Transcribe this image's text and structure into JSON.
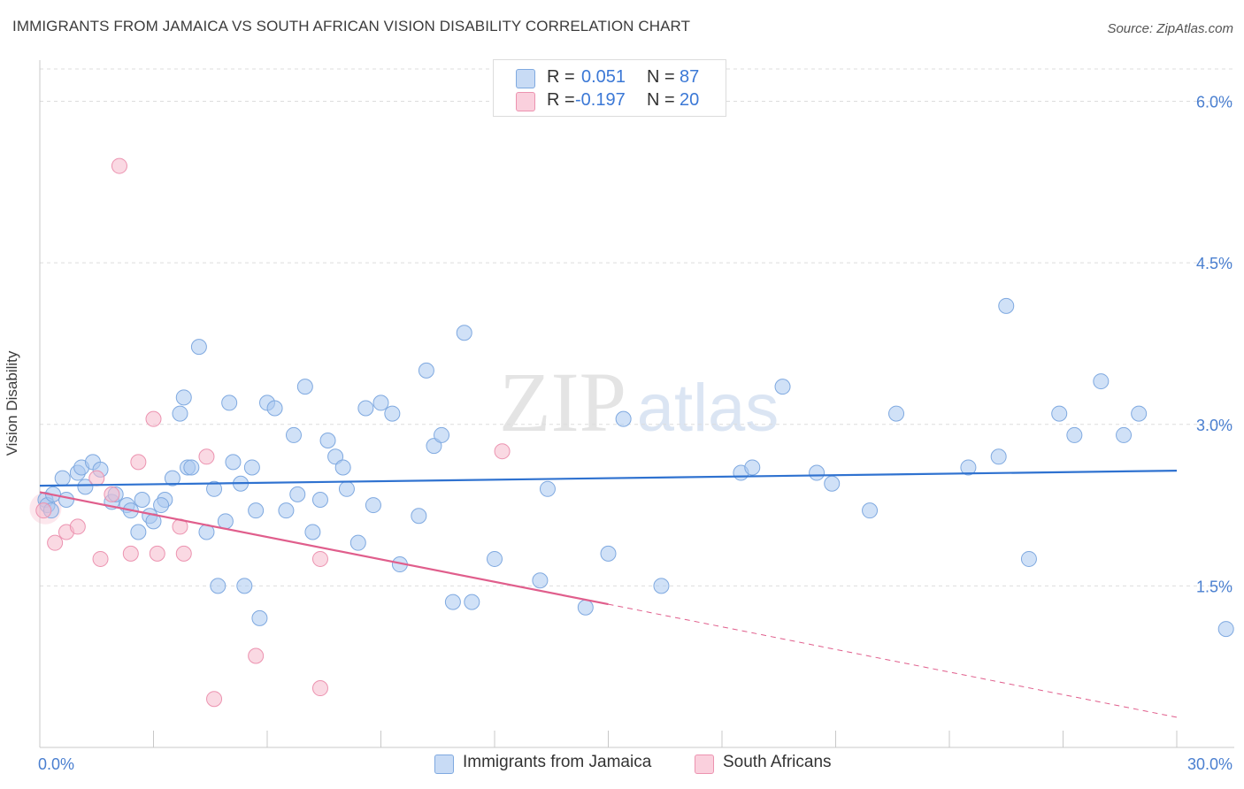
{
  "title": "IMMIGRANTS FROM JAMAICA VS SOUTH AFRICAN VISION DISABILITY CORRELATION CHART",
  "source": "Source: ZipAtlas.com",
  "watermark": {
    "zip": "ZIP",
    "atlas": "atlas"
  },
  "legend": {
    "rows": [
      {
        "r_label": "R =",
        "r_value": "0.051",
        "n_label": "N =",
        "n_value": "87",
        "color": "#a9c8f0"
      },
      {
        "r_label": "R =",
        "r_value": "-0.197",
        "n_label": "N =",
        "n_value": "20",
        "color": "#f6b9cc"
      }
    ]
  },
  "bottom_legend": {
    "series_1": "Immigrants from Jamaica",
    "series_2": "South Africans"
  },
  "colors": {
    "blue_fill": "#a9c8f0",
    "blue_stroke": "#7fa9e0",
    "blue_line": "#2f72d0",
    "pink_fill": "#f6b9cc",
    "pink_stroke": "#ec93b0",
    "pink_line": "#e05e8c",
    "axis_text": "#4a7fd0",
    "grid": "#dddddd"
  },
  "chart_data": {
    "type": "scatter",
    "title": "IMMIGRANTS FROM JAMAICA VS SOUTH AFRICAN VISION DISABILITY CORRELATION CHART",
    "xlabel": "",
    "ylabel": "Vision Disability",
    "xlim": [
      0,
      30
    ],
    "ylim": [
      0,
      6.3
    ],
    "x_tick_labels": [
      "0.0%",
      "30.0%"
    ],
    "y_ticks": [
      1.5,
      3.0,
      4.5,
      6.0
    ],
    "y_tick_labels": [
      "1.5%",
      "3.0%",
      "4.5%",
      "6.0%"
    ],
    "grid": true,
    "series": [
      {
        "name": "Immigrants from Jamaica",
        "color": "#a9c8f0",
        "points": [
          [
            0.15,
            2.3
          ],
          [
            0.2,
            2.25
          ],
          [
            0.3,
            2.2
          ],
          [
            0.35,
            2.35
          ],
          [
            0.6,
            2.5
          ],
          [
            0.7,
            2.3
          ],
          [
            1.0,
            2.55
          ],
          [
            1.1,
            2.6
          ],
          [
            1.2,
            2.42
          ],
          [
            1.4,
            2.65
          ],
          [
            1.6,
            2.58
          ],
          [
            1.9,
            2.28
          ],
          [
            2.0,
            2.35
          ],
          [
            2.3,
            2.25
          ],
          [
            2.4,
            2.2
          ],
          [
            2.6,
            2.0
          ],
          [
            2.7,
            2.3
          ],
          [
            2.9,
            2.15
          ],
          [
            3.0,
            2.1
          ],
          [
            3.3,
            2.3
          ],
          [
            3.2,
            2.25
          ],
          [
            3.5,
            2.5
          ],
          [
            3.7,
            3.1
          ],
          [
            3.8,
            3.25
          ],
          [
            3.9,
            2.6
          ],
          [
            4.0,
            2.6
          ],
          [
            4.2,
            3.72
          ],
          [
            4.4,
            2.0
          ],
          [
            4.6,
            2.4
          ],
          [
            4.7,
            1.5
          ],
          [
            4.9,
            2.1
          ],
          [
            5.0,
            3.2
          ],
          [
            5.1,
            2.65
          ],
          [
            5.3,
            2.45
          ],
          [
            5.4,
            1.5
          ],
          [
            5.6,
            2.6
          ],
          [
            5.7,
            2.2
          ],
          [
            5.8,
            1.2
          ],
          [
            6.0,
            3.2
          ],
          [
            6.2,
            3.15
          ],
          [
            6.5,
            2.2
          ],
          [
            6.7,
            2.9
          ],
          [
            6.8,
            2.35
          ],
          [
            7.0,
            3.35
          ],
          [
            7.2,
            2.0
          ],
          [
            7.4,
            2.3
          ],
          [
            7.6,
            2.85
          ],
          [
            7.8,
            2.7
          ],
          [
            8.0,
            2.6
          ],
          [
            8.1,
            2.4
          ],
          [
            8.4,
            1.9
          ],
          [
            8.6,
            3.15
          ],
          [
            8.8,
            2.25
          ],
          [
            9.0,
            3.2
          ],
          [
            9.3,
            3.1
          ],
          [
            9.5,
            1.7
          ],
          [
            10.0,
            2.15
          ],
          [
            10.2,
            3.5
          ],
          [
            10.4,
            2.8
          ],
          [
            10.6,
            2.9
          ],
          [
            10.9,
            1.35
          ],
          [
            11.2,
            3.85
          ],
          [
            11.4,
            1.35
          ],
          [
            12.0,
            1.75
          ],
          [
            13.2,
            1.55
          ],
          [
            13.4,
            2.4
          ],
          [
            14.4,
            1.3
          ],
          [
            15.0,
            1.8
          ],
          [
            15.4,
            3.05
          ],
          [
            16.4,
            1.5
          ],
          [
            18.5,
            2.55
          ],
          [
            18.8,
            2.6
          ],
          [
            19.6,
            3.35
          ],
          [
            20.5,
            2.55
          ],
          [
            20.9,
            2.45
          ],
          [
            21.9,
            2.2
          ],
          [
            22.6,
            3.1
          ],
          [
            24.5,
            2.6
          ],
          [
            25.3,
            2.7
          ],
          [
            25.5,
            4.1
          ],
          [
            26.1,
            1.75
          ],
          [
            26.9,
            3.1
          ],
          [
            27.3,
            2.9
          ],
          [
            28.0,
            3.4
          ],
          [
            28.6,
            2.9
          ],
          [
            29.0,
            3.1
          ],
          [
            31.3,
            1.1
          ]
        ]
      },
      {
        "name": "South Africans",
        "color": "#f6b9cc",
        "points": [
          [
            0.1,
            2.2
          ],
          [
            0.4,
            1.9
          ],
          [
            0.7,
            2.0
          ],
          [
            1.0,
            2.05
          ],
          [
            1.5,
            2.5
          ],
          [
            1.6,
            1.75
          ],
          [
            1.9,
            2.35
          ],
          [
            2.1,
            5.4
          ],
          [
            2.4,
            1.8
          ],
          [
            2.6,
            2.65
          ],
          [
            3.0,
            3.05
          ],
          [
            3.1,
            1.8
          ],
          [
            3.7,
            2.05
          ],
          [
            3.8,
            1.8
          ],
          [
            4.4,
            2.7
          ],
          [
            4.6,
            0.45
          ],
          [
            5.7,
            0.85
          ],
          [
            7.4,
            0.55
          ],
          [
            7.4,
            1.75
          ],
          [
            12.2,
            2.75
          ]
        ]
      }
    ],
    "trend_lines": [
      {
        "series": "Immigrants from Jamaica",
        "x": [
          0,
          30
        ],
        "y": [
          2.43,
          2.57
        ],
        "style": "solid"
      },
      {
        "series": "South Africans",
        "x": [
          0,
          15
        ],
        "y": [
          2.37,
          1.33
        ],
        "style": "solid"
      },
      {
        "series": "South Africans",
        "x": [
          15,
          30
        ],
        "y": [
          1.33,
          0.28
        ],
        "style": "dashed"
      }
    ]
  }
}
